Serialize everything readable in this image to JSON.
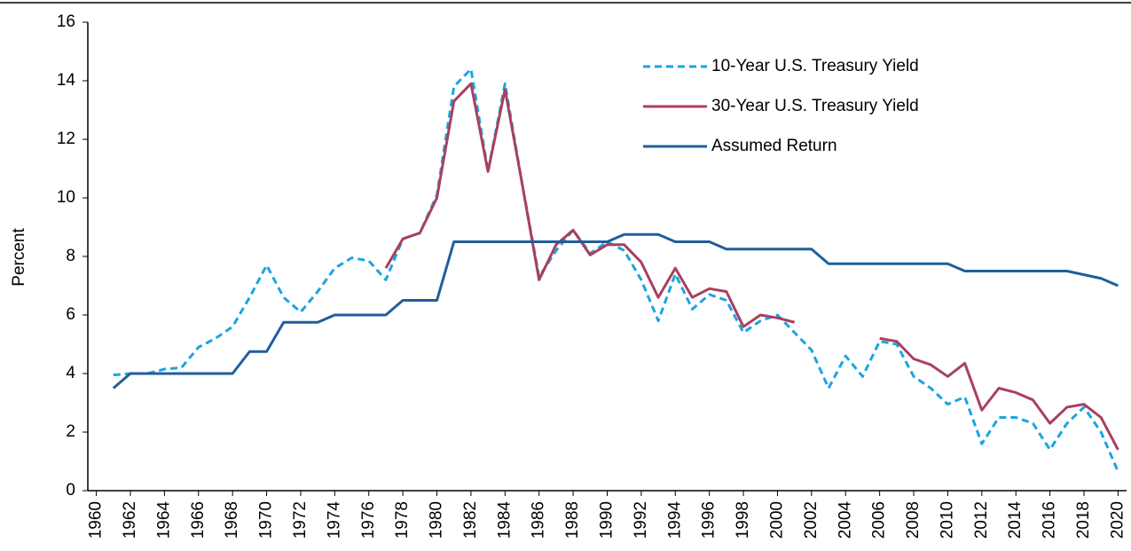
{
  "chart_data": {
    "type": "line",
    "y_label": "Percent",
    "x": [
      1961,
      1962,
      1963,
      1964,
      1965,
      1966,
      1967,
      1968,
      1969,
      1970,
      1971,
      1972,
      1973,
      1974,
      1975,
      1976,
      1977,
      1978,
      1979,
      1980,
      1981,
      1982,
      1983,
      1984,
      1985,
      1986,
      1987,
      1988,
      1989,
      1990,
      1991,
      1992,
      1993,
      1994,
      1995,
      1996,
      1997,
      1998,
      1999,
      2000,
      2001,
      2002,
      2003,
      2004,
      2005,
      2006,
      2007,
      2008,
      2009,
      2010,
      2011,
      2012,
      2013,
      2014,
      2015,
      2016,
      2017,
      2018,
      2019,
      2020
    ],
    "series": [
      {
        "name": "10-Year U.S. Treasury Yield",
        "color": "#1ba5e0",
        "dashed": true,
        "values": [
          3.95,
          4.0,
          4.0,
          4.15,
          4.2,
          4.9,
          5.2,
          5.6,
          6.6,
          7.7,
          6.6,
          6.1,
          6.8,
          7.6,
          7.95,
          7.85,
          7.2,
          8.6,
          8.8,
          10.1,
          13.8,
          14.4,
          10.9,
          13.9,
          10.5,
          7.3,
          8.2,
          8.9,
          8.1,
          8.5,
          8.2,
          7.2,
          5.8,
          7.4,
          6.2,
          6.7,
          6.5,
          5.4,
          5.8,
          6.0,
          5.4,
          4.8,
          3.5,
          4.6,
          3.9,
          5.1,
          5.0,
          3.9,
          3.5,
          2.95,
          3.2,
          1.6,
          2.5,
          2.5,
          2.3,
          1.4,
          2.3,
          2.85,
          2.0,
          0.65
        ]
      },
      {
        "name": "30-Year U.S. Treasury Yield",
        "color": "#a8405e",
        "dashed": false,
        "values": [
          null,
          null,
          null,
          null,
          null,
          null,
          null,
          null,
          null,
          null,
          null,
          null,
          null,
          null,
          null,
          null,
          7.6,
          8.6,
          8.8,
          10.0,
          13.3,
          13.9,
          10.9,
          13.7,
          10.5,
          7.2,
          8.4,
          8.9,
          8.05,
          8.4,
          8.4,
          7.8,
          6.6,
          7.6,
          6.6,
          6.9,
          6.8,
          5.6,
          6.0,
          5.9,
          5.75,
          null,
          null,
          null,
          null,
          5.2,
          5.1,
          4.5,
          4.3,
          3.9,
          4.35,
          2.75,
          3.5,
          3.35,
          3.1,
          2.3,
          2.85,
          2.95,
          2.5,
          1.4
        ]
      },
      {
        "name": "Assumed Return",
        "color": "#1f5f9c",
        "dashed": false,
        "values": [
          3.5,
          4,
          4,
          4,
          4,
          4,
          4,
          4,
          4.75,
          4.75,
          5.75,
          5.75,
          5.75,
          6,
          6,
          6,
          6,
          6.5,
          6.5,
          6.5,
          8.5,
          8.5,
          8.5,
          8.5,
          8.5,
          8.5,
          8.5,
          8.5,
          8.5,
          8.5,
          8.75,
          8.75,
          8.75,
          8.5,
          8.5,
          8.5,
          8.25,
          8.25,
          8.25,
          8.25,
          8.25,
          8.25,
          7.75,
          7.75,
          7.75,
          7.75,
          7.75,
          7.75,
          7.75,
          7.75,
          7.5,
          7.5,
          7.5,
          7.5,
          7.5,
          7.5,
          7.5,
          7.375,
          7.25,
          7.0
        ]
      }
    ],
    "xlim": [
      1959.5,
      2020.5
    ],
    "xticks": [
      1960,
      1962,
      1964,
      1966,
      1968,
      1970,
      1972,
      1974,
      1976,
      1978,
      1980,
      1982,
      1984,
      1986,
      1988,
      1990,
      1992,
      1994,
      1996,
      1998,
      2000,
      2002,
      2004,
      2006,
      2008,
      2010,
      2012,
      2014,
      2016,
      2018,
      2020
    ],
    "ylim": [
      0,
      16
    ],
    "yticks": [
      0,
      2,
      4,
      6,
      8,
      10,
      12,
      14,
      16
    ],
    "grid": false
  }
}
